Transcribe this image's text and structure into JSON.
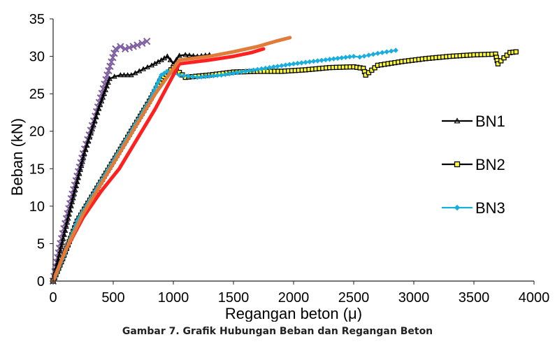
{
  "caption": "Gambar 7. Grafik Hubungan Beban dan Regangan Beton",
  "chart_data": {
    "type": "line",
    "title": "",
    "xlabel": "Regangan beton (μ)",
    "ylabel": "Beban (kN)",
    "xlim": [
      0,
      4000
    ],
    "ylim": [
      0,
      35
    ],
    "xticks": [
      "0",
      "500",
      "1000",
      "1500",
      "2000",
      "2500",
      "3000",
      "3500",
      "4000"
    ],
    "yticks": [
      "0",
      "5",
      "10",
      "15",
      "20",
      "25",
      "30",
      "35"
    ],
    "grid": false,
    "legend_position": "right",
    "series": [
      {
        "name": "BN1",
        "color": "#000000",
        "marker": "triangle",
        "legend": true,
        "x": [
          0,
          60,
          150,
          260,
          380,
          470,
          510,
          560,
          650,
          750,
          820,
          900,
          950,
          1000,
          1050,
          1100,
          1200,
          1300
        ],
        "y": [
          0,
          4,
          10,
          17,
          23,
          27,
          27.3,
          27.5,
          27.5,
          28.3,
          28.8,
          29.5,
          30,
          29,
          30.1,
          30.2,
          30,
          30.2
        ]
      },
      {
        "name": "BN2",
        "color": "#000000",
        "marker": "square",
        "markerFill": "#ffff33",
        "legend": true,
        "x": [
          0,
          80,
          200,
          350,
          500,
          650,
          800,
          900,
          1000,
          1100,
          1300,
          1500,
          1700,
          1900,
          2100,
          2300,
          2500,
          2580,
          2600,
          2700,
          2900,
          3100,
          3300,
          3500,
          3680,
          3700,
          3750,
          3800,
          3850
        ],
        "y": [
          0,
          3,
          8,
          12,
          16,
          20,
          24,
          27,
          28.5,
          27.2,
          27.5,
          27.9,
          28,
          28,
          28.2,
          28.5,
          28.6,
          28.4,
          27.5,
          28.8,
          29.3,
          29.7,
          30,
          30.2,
          30.3,
          29,
          29.8,
          30.5,
          30.6
        ]
      },
      {
        "name": "BN3",
        "color": "#1aaee0",
        "marker": "diamond",
        "legend": true,
        "x": [
          0,
          80,
          200,
          350,
          500,
          650,
          800,
          900,
          950,
          1000,
          1050,
          1200,
          1400,
          1600,
          1800,
          2000,
          2200,
          2400,
          2500,
          2550,
          2700,
          2850
        ],
        "y": [
          0,
          3,
          8,
          12,
          16,
          20,
          24,
          27.5,
          28,
          27.7,
          27.5,
          27.2,
          27.5,
          28,
          28.5,
          29,
          29.4,
          29.8,
          30,
          29.9,
          30.4,
          30.8
        ]
      },
      {
        "name": "",
        "color": "#7f5fa0",
        "marker": "x",
        "legend": false,
        "x": [
          0,
          60,
          150,
          250,
          350,
          450,
          520,
          560,
          600,
          700,
          780
        ],
        "y": [
          0,
          5,
          11,
          17,
          22,
          27.5,
          31,
          31.3,
          31,
          31.5,
          32
        ]
      },
      {
        "name": "",
        "color": "#ff2020",
        "marker": "none",
        "legend": false,
        "x": [
          0,
          100,
          250,
          400,
          550,
          700,
          850,
          1050,
          1300,
          1500,
          1650,
          1750
        ],
        "y": [
          0,
          4,
          8.5,
          12,
          15,
          19,
          23,
          29,
          29.5,
          30,
          30.5,
          31
        ]
      },
      {
        "name": "",
        "color": "#e07b39",
        "marker": "none",
        "legend": false,
        "x": [
          0,
          100,
          250,
          400,
          550,
          700,
          850,
          1050,
          1300,
          1500,
          1700,
          1850,
          1970
        ],
        "y": [
          0,
          4,
          9,
          13,
          17,
          21,
          25,
          29.5,
          30,
          30.6,
          31.3,
          32,
          32.5
        ]
      }
    ]
  }
}
